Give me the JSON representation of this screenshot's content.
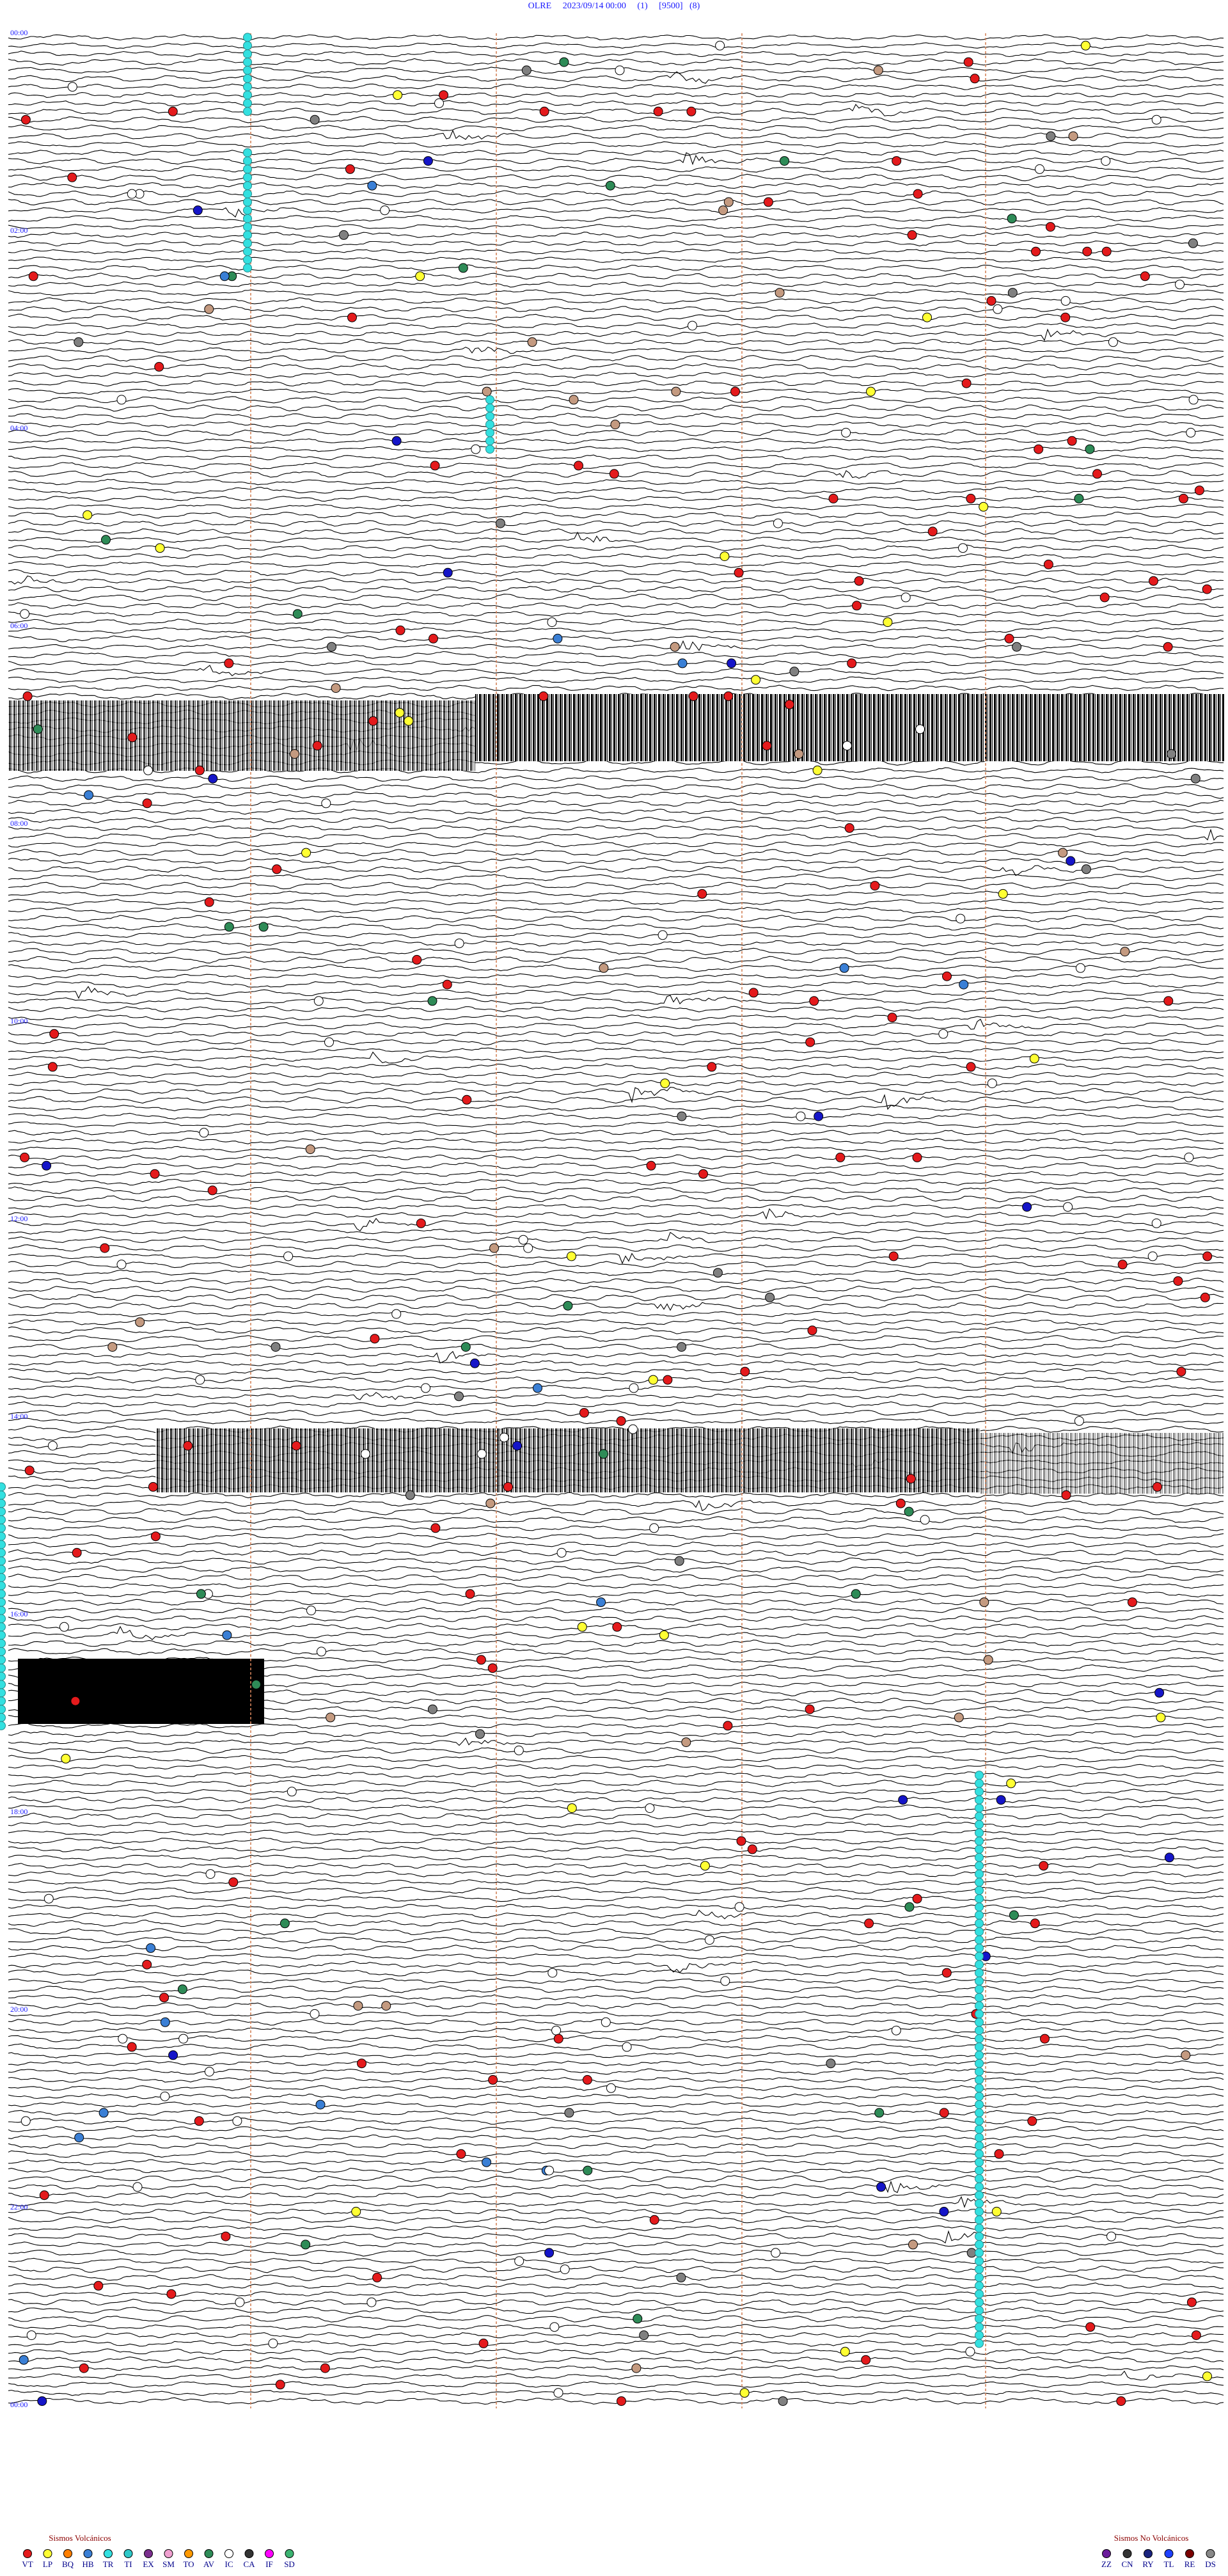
{
  "header": {
    "title": "OLRE     2023/09/14 00:00     (1)     [9500]   (8)"
  },
  "time_labels": [
    "00:00",
    "02:00",
    "04:00",
    "06:00",
    "08:00",
    "10:00",
    "12:00",
    "14:00",
    "16:00",
    "18:00",
    "20:00",
    "22:00",
    "00:00"
  ],
  "legend": {
    "volcanic": {
      "title": "Sismos Volcánicos",
      "codes": [
        "VT",
        "LP",
        "BQ",
        "HB",
        "TR",
        "TI",
        "EX",
        "SM",
        "TO",
        "AV",
        "IC",
        "CA",
        "IF",
        "SD"
      ]
    },
    "non_volcanic": {
      "title": "Sismos No Volcánicos",
      "codes": [
        "ZZ",
        "CN",
        "RY",
        "TL",
        "RE",
        "DS"
      ]
    }
  }
}
